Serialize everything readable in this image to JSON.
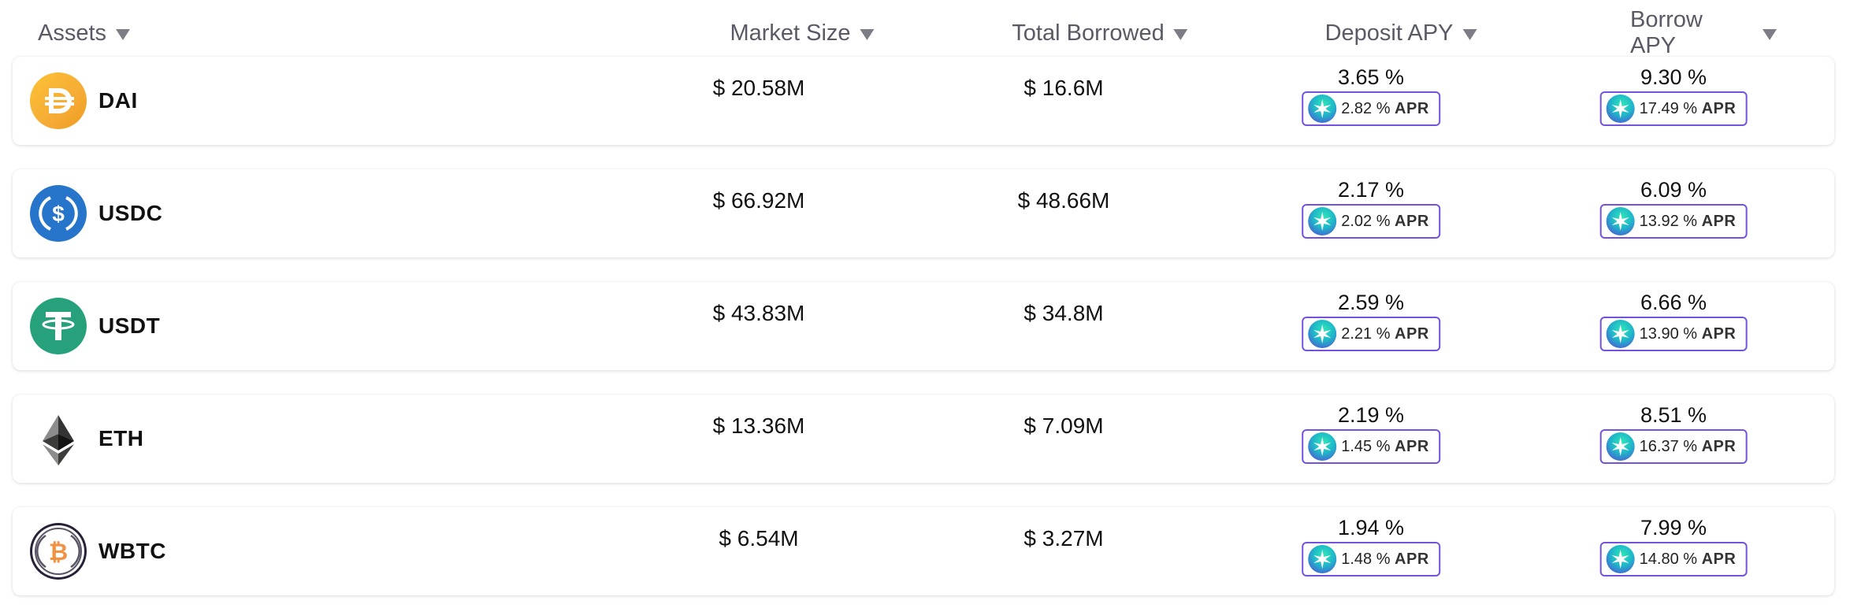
{
  "columns": {
    "assets": "Assets",
    "market_size": "Market Size",
    "total_borrowed": "Total Borrowed",
    "deposit_apy": "Deposit APY",
    "borrow_apy": "Borrow APY"
  },
  "apr_suffix": "APR",
  "rows": [
    {
      "asset": "DAI",
      "icon": "dai-icon",
      "market_size": "$ 20.58M",
      "total_borrowed": "$ 16.6M",
      "deposit_apy": "3.65 %",
      "deposit_apr": "2.82 %",
      "borrow_apy": "9.30 %",
      "borrow_apr": "17.49 %"
    },
    {
      "asset": "USDC",
      "icon": "usdc-icon",
      "market_size": "$ 66.92M",
      "total_borrowed": "$ 48.66M",
      "deposit_apy": "2.17 %",
      "deposit_apr": "2.02 %",
      "borrow_apy": "6.09 %",
      "borrow_apr": "13.92 %"
    },
    {
      "asset": "USDT",
      "icon": "usdt-icon",
      "market_size": "$ 43.83M",
      "total_borrowed": "$ 34.8M",
      "deposit_apy": "2.59 %",
      "deposit_apr": "2.21 %",
      "borrow_apy": "6.66 %",
      "borrow_apr": "13.90 %"
    },
    {
      "asset": "ETH",
      "icon": "eth-icon",
      "market_size": "$ 13.36M",
      "total_borrowed": "$ 7.09M",
      "deposit_apy": "2.19 %",
      "deposit_apr": "1.45 %",
      "borrow_apy": "8.51 %",
      "borrow_apr": "16.37 %"
    },
    {
      "asset": "WBTC",
      "icon": "wbtc-icon",
      "market_size": "$ 6.54M",
      "total_borrowed": "$ 3.27M",
      "deposit_apy": "1.94 %",
      "deposit_apr": "1.48 %",
      "borrow_apy": "7.99 %",
      "borrow_apr": "14.80 %"
    }
  ],
  "colors": {
    "dai": "#f5ac37",
    "usdc": "#2775ca",
    "usdt": "#26a17b",
    "wbtc": "#f09242",
    "apr_border": "#7452e0"
  }
}
